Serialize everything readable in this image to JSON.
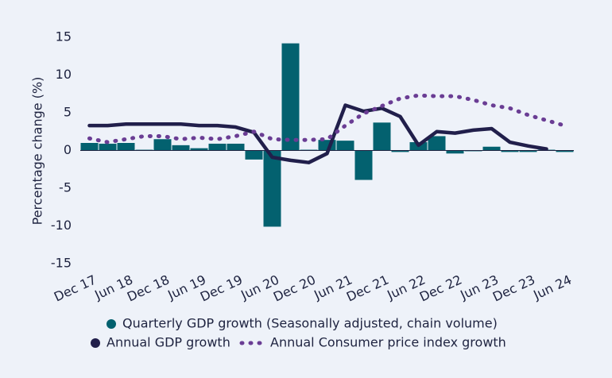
{
  "chart_data": {
    "type": "bar-line",
    "y_label": "Percentage change (%)",
    "categories": [
      "Dec 17",
      null,
      "Jun 18",
      null,
      "Dec 18",
      null,
      "Jun 19",
      null,
      "Dec 19",
      null,
      "Jun 20",
      null,
      "Dec 20",
      null,
      "Jun 21",
      null,
      "Dec 21",
      null,
      "Jun 22",
      null,
      "Dec 22",
      null,
      "Jun 23",
      null,
      "Dec 23",
      null,
      "Jun 24"
    ],
    "series": [
      {
        "name": "Quarterly GDP growth (Seasonally adjusted, chain volume)",
        "type": "bar",
        "color": "#03616f",
        "values": [
          1.0,
          0.9,
          1.0,
          0.1,
          1.5,
          0.7,
          0.3,
          0.9,
          0.9,
          -1.2,
          -10.1,
          14.2,
          0.1,
          1.4,
          1.3,
          -3.9,
          3.7,
          -0.2,
          1.1,
          1.9,
          -0.4,
          -0.1,
          0.5,
          -0.2,
          -0.2,
          0.1,
          -0.2
        ]
      },
      {
        "name": "Annual GDP growth",
        "type": "line",
        "line_style": "solid",
        "color": "#211f4b",
        "values": [
          3.3,
          3.3,
          3.5,
          3.5,
          3.5,
          3.5,
          3.3,
          3.3,
          3.1,
          2.4,
          -0.9,
          -1.3,
          -1.6,
          -0.4,
          6.0,
          5.2,
          5.6,
          4.5,
          0.7,
          2.5,
          2.3,
          2.7,
          2.9,
          1.1,
          0.6,
          0.2,
          null
        ]
      },
      {
        "name": "Annual Consumer price index growth",
        "type": "line",
        "line_style": "dotted",
        "color": "#6a3d94",
        "values": [
          1.6,
          1.1,
          1.5,
          1.9,
          1.9,
          1.5,
          1.7,
          1.5,
          1.9,
          2.5,
          1.5,
          1.4,
          1.4,
          1.5,
          3.3,
          4.9,
          5.9,
          6.9,
          7.3,
          7.2,
          7.2,
          6.7,
          6.0,
          5.6,
          4.7,
          4.0,
          3.3
        ]
      }
    ],
    "ylim": [
      -15,
      15
    ],
    "yticks": [
      15,
      10,
      5,
      0,
      -5,
      -10,
      -15
    ],
    "grid": false
  }
}
